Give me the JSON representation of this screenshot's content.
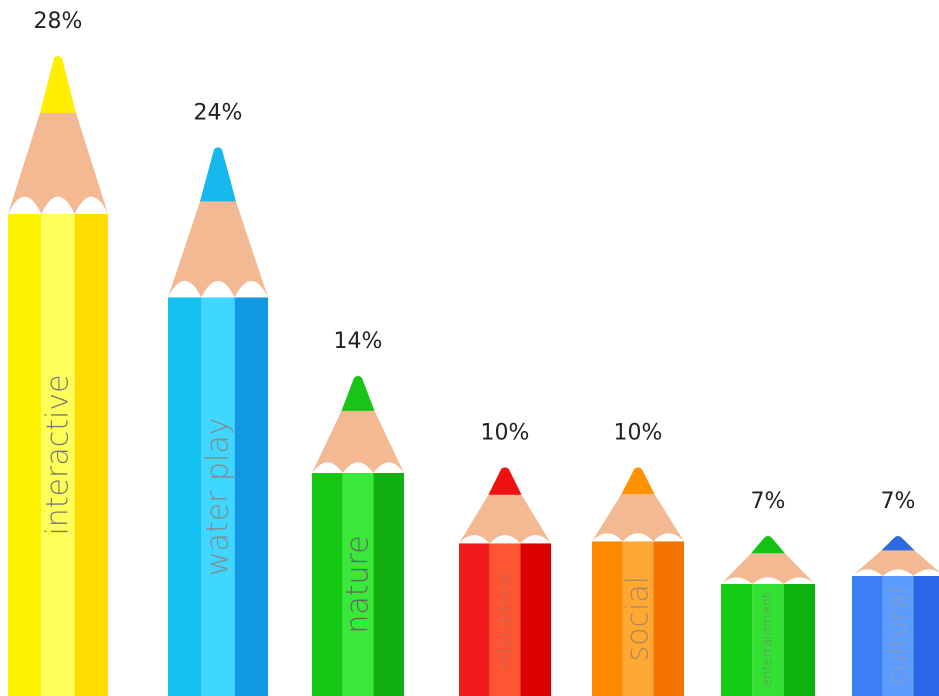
{
  "chart_data": {
    "type": "bar",
    "categories": [
      "interactive",
      "water play",
      "nature",
      "educational",
      "social",
      "entertainment",
      "cultural"
    ],
    "values": [
      28,
      24,
      14,
      10,
      10,
      7,
      7
    ],
    "value_labels": [
      "28%",
      "24%",
      "14%",
      "10%",
      "10%",
      "7%",
      "7%"
    ],
    "unit": "%",
    "title": "",
    "xlabel": "",
    "ylabel": "",
    "ylim": [
      0,
      28
    ],
    "grid": false,
    "legend": "none"
  },
  "colors": {
    "wood": "#F2B993",
    "pencils": [
      {
        "light": "#FFFF5A",
        "mid": "#FFF200",
        "dark": "#FFDD00",
        "tip": "#FFEE00",
        "text": "#777777"
      },
      {
        "light": "#3FD6FF",
        "mid": "#14C2F2",
        "dark": "#1199E6",
        "tip": "#16B8EE",
        "text": "#888888"
      },
      {
        "light": "#3AE83A",
        "mid": "#14C814",
        "dark": "#10B010",
        "tip": "#18C418",
        "text": "#666666"
      },
      {
        "light": "#FF5533",
        "mid": "#F01A1A",
        "dark": "#DD0000",
        "tip": "#EE1111",
        "text": "#B86A5A"
      },
      {
        "light": "#FFA833",
        "mid": "#FF8A00",
        "dark": "#F57300",
        "tip": "#FF9200",
        "text": "#B2865E"
      },
      {
        "light": "#33E033",
        "mid": "#14CC14",
        "dark": "#0FB30F",
        "tip": "#14C414",
        "text": "#6E8E6E"
      },
      {
        "light": "#5C9CFF",
        "mid": "#3D7EF5",
        "dark": "#2A66E6",
        "tip": "#2F6BE0",
        "text": "#8A9BB8"
      }
    ]
  }
}
